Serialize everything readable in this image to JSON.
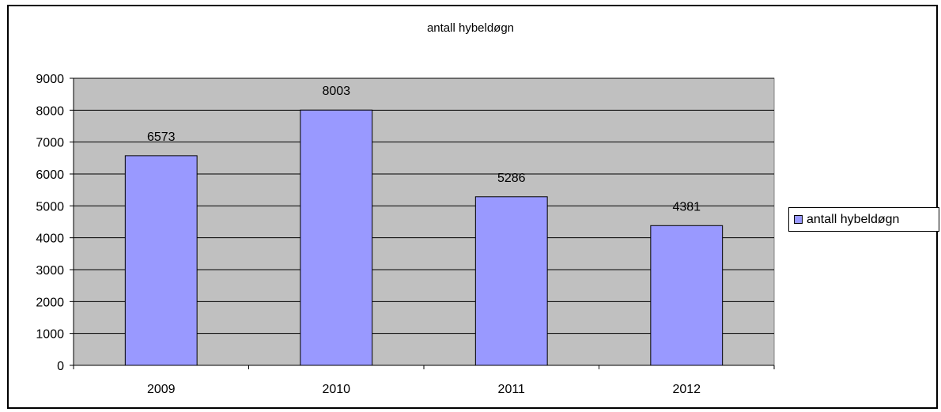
{
  "chart_data": {
    "type": "bar",
    "title": "antall hybeldøgn",
    "xlabel": "",
    "ylabel": "",
    "categories": [
      "2009",
      "2010",
      "2011",
      "2012"
    ],
    "series": [
      {
        "name": "antall hybeldøgn",
        "values": [
          6573,
          8003,
          5286,
          4381
        ]
      }
    ],
    "ylim": [
      0,
      9000
    ],
    "yticks": [
      0,
      1000,
      2000,
      3000,
      4000,
      5000,
      6000,
      7000,
      8000,
      9000
    ],
    "grid": true,
    "data_labels": true,
    "legend_position": "right"
  },
  "colors": {
    "plot_background": "#c0c0c0",
    "bar_fill": "#9999ff",
    "gridline": "#000000"
  }
}
